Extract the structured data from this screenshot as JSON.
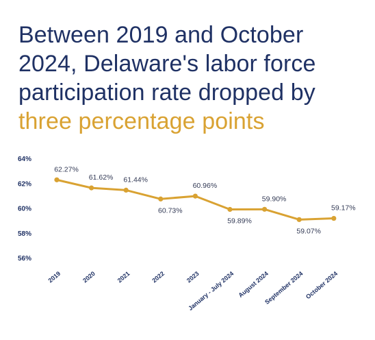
{
  "headline": {
    "line1": "Between 2019 and October",
    "line2": "2024, Delaware's labor force",
    "line3": "participation rate dropped by",
    "accent": "three percentage points"
  },
  "colors": {
    "title": "#1f3164",
    "accent": "#d9a232",
    "line": "#d9a232",
    "labels": "#333a55"
  },
  "chart_data": {
    "type": "line",
    "categories": [
      "2019",
      "2020",
      "2021",
      "2022",
      "2023",
      "January - July 2024",
      "August 2024",
      "September 2024",
      "October 2024"
    ],
    "series": [
      {
        "values": [
          62.27,
          61.62,
          61.44,
          60.73,
          60.96,
          59.89,
          59.9,
          59.07,
          59.17
        ],
        "labels": [
          "62.27%",
          "61.62%",
          "61.44%",
          "60.73%",
          "60.96%",
          "59.89%",
          "59.90%",
          "59.07%",
          "59.17%"
        ],
        "label_position": [
          "above",
          "above",
          "above",
          "below",
          "above",
          "below",
          "above",
          "below",
          "above"
        ]
      }
    ],
    "yticks": [
      64,
      62,
      60,
      58,
      56
    ],
    "ytick_labels": [
      "64%",
      "62%",
      "60%",
      "58%",
      "56%"
    ],
    "ylim": [
      56,
      64
    ],
    "grid": false,
    "legend": false
  }
}
